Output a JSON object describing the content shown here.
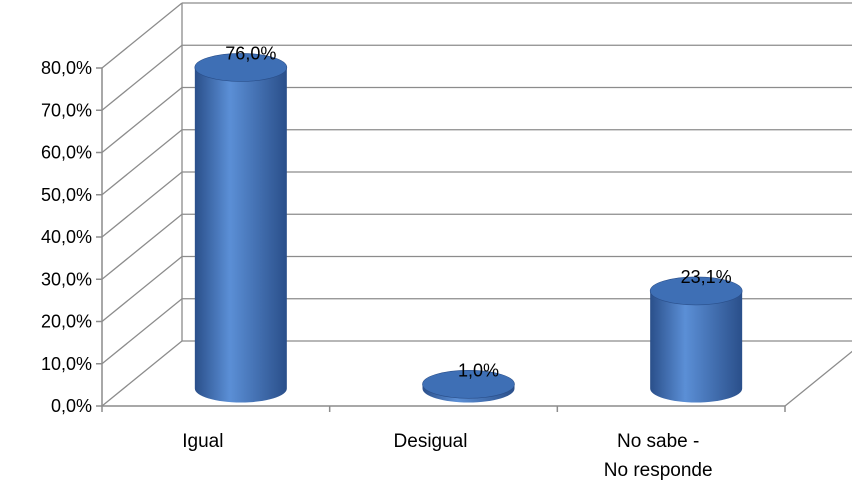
{
  "chart_data": {
    "type": "bar",
    "style": "3d-cylinder",
    "title": "",
    "xlabel": "",
    "ylabel": "",
    "categories": [
      [
        "Igual"
      ],
      [
        "Desigual"
      ],
      [
        "No sabe -",
        "No responde"
      ]
    ],
    "values": [
      76.0,
      1.0,
      23.1
    ],
    "data_labels": [
      "76,0%",
      "1,0%",
      "23,1%"
    ],
    "ylim": [
      0,
      80
    ],
    "yticks": [
      0,
      10,
      20,
      30,
      40,
      50,
      60,
      70,
      80
    ],
    "ytick_labels": [
      "0,0%",
      "10,0%",
      "20,0%",
      "30,0%",
      "40,0%",
      "50,0%",
      "60,0%",
      "70,0%",
      "80,0%"
    ],
    "grid": true,
    "legend": "none",
    "colors": {
      "bar_light": "#5b8fd6",
      "bar_mid": "#3f74c0",
      "bar_dark": "#2a4f8a",
      "bar_top": "#3e6fb5",
      "grid": "#8c8c8c",
      "axis": "#8c8c8c"
    }
  }
}
